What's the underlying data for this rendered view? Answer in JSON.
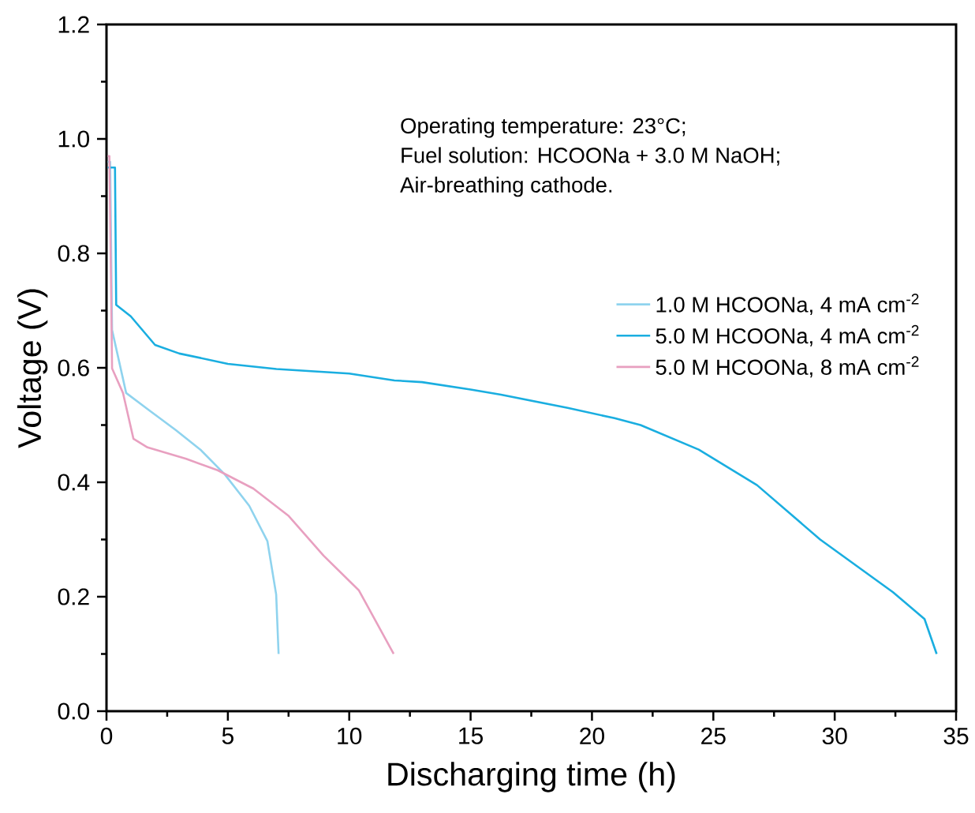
{
  "chart_data": {
    "type": "line",
    "xlabel": "Discharging time (h)",
    "ylabel": "Voltage (V)",
    "xlim": [
      0,
      35
    ],
    "ylim": [
      0,
      1.2
    ],
    "xticks": [
      0,
      5,
      10,
      15,
      20,
      25,
      30,
      35
    ],
    "yticks": [
      {
        "value": 0,
        "label": "0.0"
      },
      0.2,
      0.4,
      0.6,
      0.8,
      {
        "value": 1,
        "label": "1.0"
      },
      1.2
    ],
    "legend": "right",
    "annotations": [
      "Operating temperature: 23°C;",
      "Fuel solution: HCOONa + 3.0 M NaOH;",
      "Air-breathing cathode."
    ],
    "series": [
      {
        "name": "1.0 M HCOONa, 4 mA cm$^{-2}$",
        "color": "#8fd3ee",
        "x": [
          0.05,
          0.15,
          0.23,
          0.81,
          1.69,
          2.86,
          3.87,
          4.87,
          5.88,
          6.63,
          6.99,
          7.09
        ],
        "values": [
          0.96,
          0.96,
          0.666,
          0.556,
          0.528,
          0.491,
          0.457,
          0.414,
          0.359,
          0.297,
          0.204,
          0.1
        ]
      },
      {
        "name": "5.0 M HCOONa, 4 mA cm$^{-2}$",
        "color": "#1aaee0",
        "x": [
          0.05,
          0.35,
          0.4,
          1,
          2,
          3,
          5,
          7,
          10,
          11.86,
          13,
          15,
          16.25,
          19,
          20.93,
          22,
          24.4,
          26.8,
          29.4,
          32.4,
          33.7,
          34.2
        ],
        "values": [
          0.95,
          0.95,
          0.71,
          0.69,
          0.64,
          0.625,
          0.607,
          0.598,
          0.59,
          0.578,
          0.575,
          0.562,
          0.553,
          0.53,
          0.512,
          0.5,
          0.457,
          0.395,
          0.3,
          0.208,
          0.161,
          0.1
        ]
      },
      {
        "name": "5.0 M HCOONa, 8 mA cm$^{-2}$",
        "color": "#e8a0c0",
        "x": [
          0.05,
          0.12,
          0.23,
          0.68,
          1.11,
          1.69,
          3.28,
          4.58,
          6.05,
          7.51,
          8.94,
          10.4,
          11.83
        ],
        "values": [
          0.97,
          0.97,
          0.599,
          0.556,
          0.476,
          0.461,
          0.441,
          0.421,
          0.389,
          0.341,
          0.272,
          0.211,
          0.1
        ]
      }
    ]
  }
}
